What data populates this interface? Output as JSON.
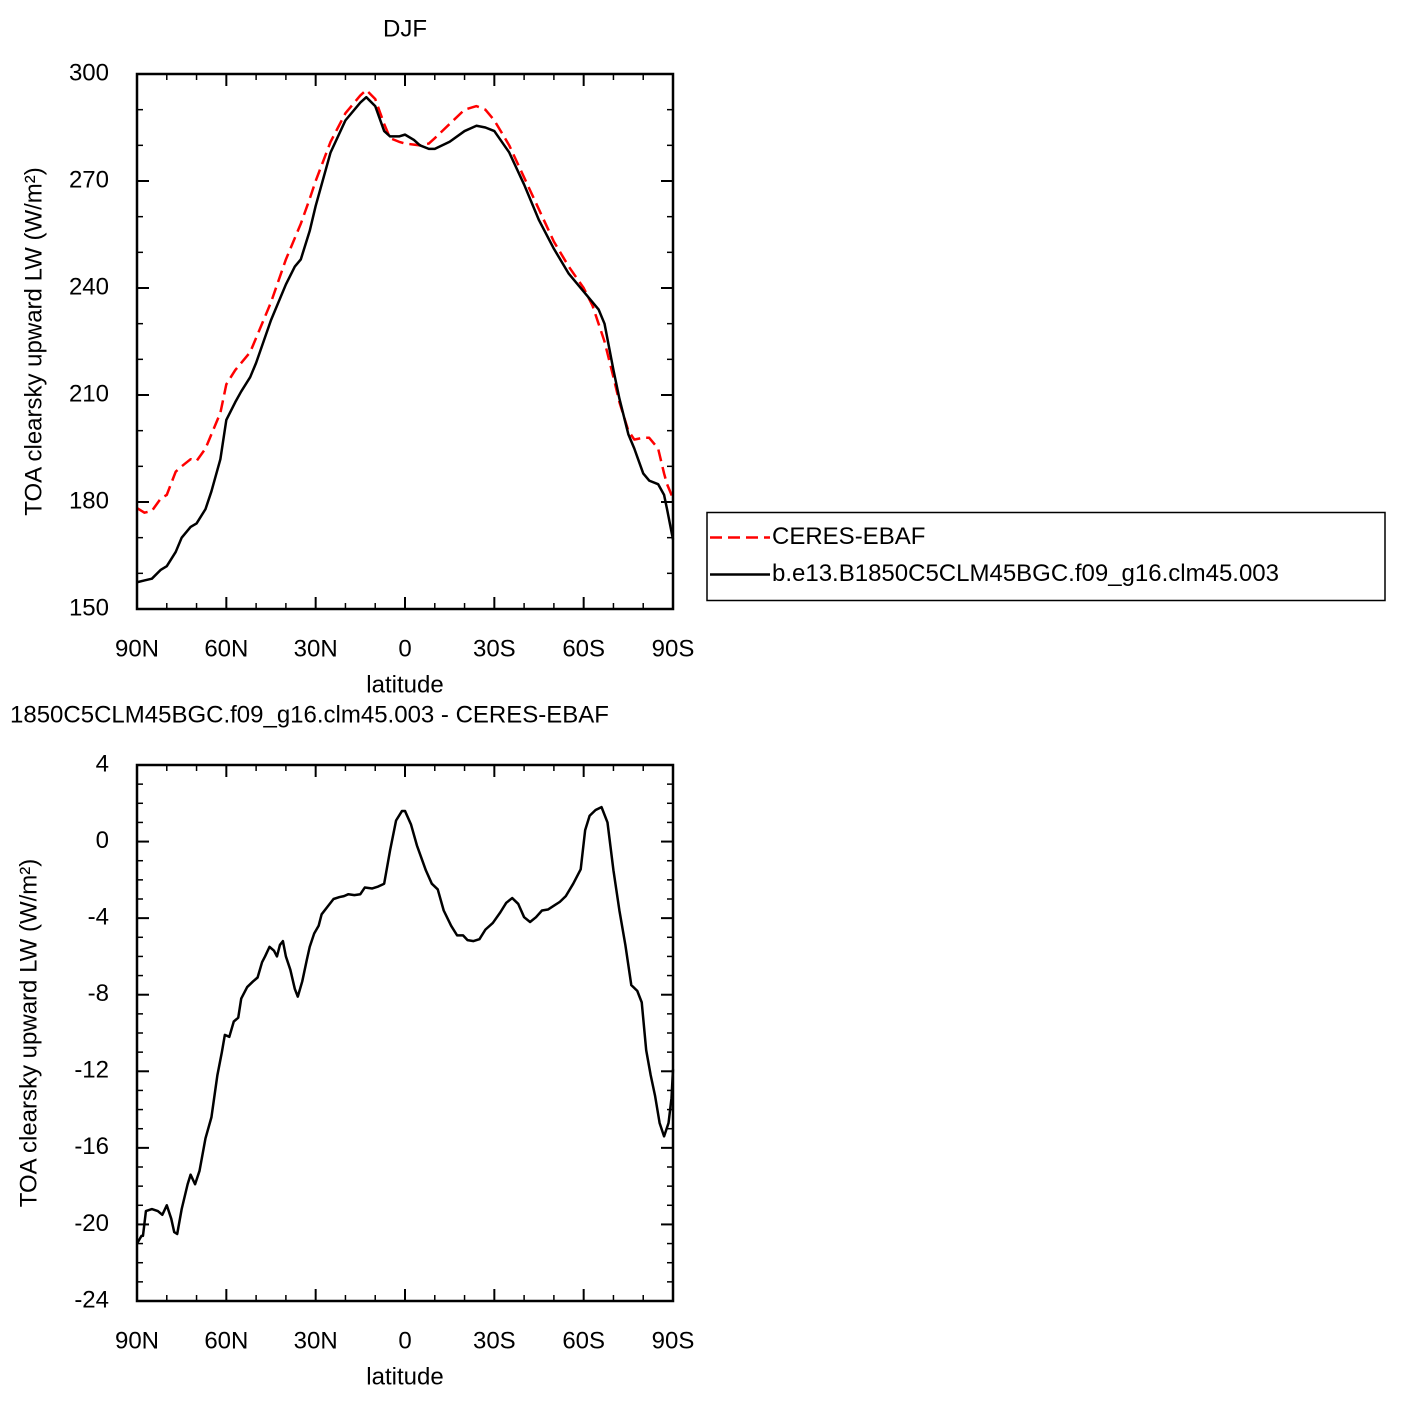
{
  "chart_data": [
    {
      "type": "line",
      "title": "DJF",
      "xlabel": "latitude",
      "ylabel": "TOA clearsky upward LW (W/m²)",
      "x": [
        90,
        87.5,
        85,
        82,
        80,
        77,
        75,
        72,
        70,
        67,
        65,
        62,
        60,
        57,
        55,
        52,
        50,
        45,
        40,
        37,
        35,
        32,
        30,
        25,
        20,
        15,
        13,
        10,
        7,
        5,
        2,
        0,
        -3,
        -5,
        -8,
        -10,
        -15,
        -20,
        -24,
        -27,
        -30,
        -35,
        -40,
        -45,
        -50,
        -55,
        -60,
        -63,
        -65,
        -67,
        -70,
        -72,
        -75,
        -77,
        -80,
        -82,
        -85,
        -87,
        -88,
        -90
      ],
      "series": [
        {
          "name": "CERES-EBAF",
          "color": "#ff0000",
          "line_style": "dashed",
          "values": [
            178.3,
            177,
            177.5,
            181,
            182,
            188.5,
            190,
            192,
            191.5,
            195,
            199,
            205,
            213,
            217,
            219,
            222,
            226,
            236,
            248,
            254,
            258,
            265,
            270,
            281,
            289,
            294,
            295.5,
            293,
            286,
            282,
            281,
            280.5,
            280.2,
            280,
            280.5,
            282,
            286,
            290,
            291,
            290,
            287,
            280,
            271,
            262,
            253,
            246,
            240,
            235,
            230,
            225,
            215,
            208,
            200,
            197.5,
            198,
            198,
            195,
            188,
            185,
            181
          ]
        },
        {
          "name": "b.e13.B1850C5CLM45BGC.f09_g16.clm45.003",
          "color": "#000000",
          "line_style": "solid",
          "values": [
            157.5,
            158,
            158.5,
            161,
            162,
            166,
            170,
            173,
            174,
            178,
            183,
            192,
            203,
            208,
            211,
            215,
            219,
            231,
            241,
            246,
            248,
            256,
            263,
            278,
            287,
            292,
            293.5,
            291,
            284,
            282.5,
            282.5,
            283,
            281.5,
            280,
            279,
            279,
            281,
            284,
            285.5,
            285,
            284,
            278,
            269,
            259,
            251,
            244,
            239,
            236,
            234,
            230,
            217,
            209,
            199,
            195,
            188,
            186,
            185,
            182,
            178,
            169.5
          ]
        }
      ],
      "xlim": [
        90,
        -90
      ],
      "xticks": [
        {
          "value": 90,
          "label": "90N"
        },
        {
          "value": 60,
          "label": "60N"
        },
        {
          "value": 30,
          "label": "30N"
        },
        0,
        {
          "value": -30,
          "label": "30S"
        },
        {
          "value": -60,
          "label": "60S"
        },
        {
          "value": -90,
          "label": "90S"
        }
      ],
      "xminorticks": [
        80,
        70,
        50,
        40,
        20,
        10,
        -10,
        -20,
        -40,
        -50,
        -70,
        -80
      ],
      "ylim": [
        150,
        300
      ],
      "yticks": [
        150,
        180,
        210,
        240,
        270,
        300
      ],
      "yminorticks": [
        160,
        170,
        190,
        200,
        220,
        230,
        250,
        260,
        280,
        290
      ],
      "legend": "right"
    },
    {
      "type": "line",
      "title": "1850C5CLM45BGC.f09_g16.clm45.003 - CERES-EBAF",
      "xlabel": "latitude",
      "ylabel": "TOA clearsky upward LW (W/m²)",
      "x": [
        90,
        88.5,
        88,
        87,
        85,
        83,
        81.5,
        80,
        78.5,
        77.5,
        76.5,
        75,
        73,
        72,
        70.5,
        69,
        67,
        65,
        63,
        61.5,
        60.5,
        59,
        57.5,
        56,
        55,
        53,
        51,
        49.5,
        48,
        47,
        45.5,
        44,
        43,
        42,
        41,
        40,
        38.5,
        37,
        36,
        34.5,
        33,
        32,
        30.5,
        29,
        28,
        26,
        24,
        22,
        20.5,
        19,
        17,
        15,
        13.5,
        11,
        9,
        7,
        5,
        3,
        1,
        0,
        -2,
        -4,
        -7,
        -9,
        -11,
        -13,
        -15.5,
        -17.5,
        -19.5,
        -21,
        -23,
        -25,
        -27,
        -29.5,
        -32,
        -34,
        -36,
        -38,
        -40,
        -42,
        -44,
        -46,
        -48,
        -50,
        -52,
        -54,
        -56.5,
        -59,
        -60.5,
        -62,
        -64,
        -66,
        -68,
        -70,
        -72,
        -74,
        -76,
        -78,
        -79.5,
        -81,
        -82.5,
        -84,
        -85.5,
        -87,
        -88.5,
        -89.5,
        -90
      ],
      "values": [
        -21,
        -20.6,
        -20.6,
        -19.3,
        -19.2,
        -19.3,
        -19.5,
        -19,
        -19.7,
        -20.4,
        -20.5,
        -19.2,
        -17.9,
        -17.4,
        -17.9,
        -17.2,
        -15.5,
        -14.4,
        -12.2,
        -11,
        -10.1,
        -10.2,
        -9.4,
        -9.2,
        -8.2,
        -7.6,
        -7.3,
        -7.1,
        -6.3,
        -6,
        -5.5,
        -5.7,
        -6,
        -5.4,
        -5.2,
        -6,
        -6.7,
        -7.7,
        -8.1,
        -7.3,
        -6.2,
        -5.5,
        -4.8,
        -4.4,
        -3.8,
        -3.4,
        -3,
        -2.9,
        -2.85,
        -2.75,
        -2.8,
        -2.75,
        -2.4,
        -2.45,
        -2.35,
        -2.2,
        -0.45,
        1.1,
        1.6,
        1.6,
        0.9,
        -0.2,
        -1.5,
        -2.2,
        -2.5,
        -3.6,
        -4.4,
        -4.9,
        -4.9,
        -5.15,
        -5.2,
        -5.1,
        -4.6,
        -4.25,
        -3.7,
        -3.2,
        -2.95,
        -3.25,
        -3.95,
        -4.2,
        -3.95,
        -3.6,
        -3.55,
        -3.35,
        -3.15,
        -2.85,
        -2.2,
        -1.45,
        0.6,
        1.35,
        1.65,
        1.8,
        1,
        -1.5,
        -3.6,
        -5.4,
        -7.5,
        -7.8,
        -8.4,
        -10.9,
        -12.2,
        -13.3,
        -14.7,
        -15.4,
        -14.7,
        -13.4,
        -11.9
      ],
      "color": "#000000",
      "xlim": [
        90,
        -90
      ],
      "xticks": [
        {
          "value": 90,
          "label": "90N"
        },
        {
          "value": 60,
          "label": "60N"
        },
        {
          "value": 30,
          "label": "30N"
        },
        0,
        {
          "value": -30,
          "label": "30S"
        },
        {
          "value": -60,
          "label": "60S"
        },
        {
          "value": -90,
          "label": "90S"
        }
      ],
      "xminorticks": [
        80,
        70,
        50,
        40,
        20,
        10,
        -10,
        -20,
        -40,
        -50,
        -70,
        -80
      ],
      "ylim": [
        -24,
        4
      ],
      "yticks": [
        -24,
        -20,
        -16,
        -12,
        -8,
        -4,
        0,
        4
      ],
      "yminorticks": [
        3,
        2,
        1,
        -1,
        -2,
        -3,
        -5,
        -6,
        -7,
        -9,
        -10,
        -11,
        -13,
        -14,
        -15,
        -17,
        -18,
        -19,
        -21,
        -22,
        -23
      ]
    }
  ]
}
